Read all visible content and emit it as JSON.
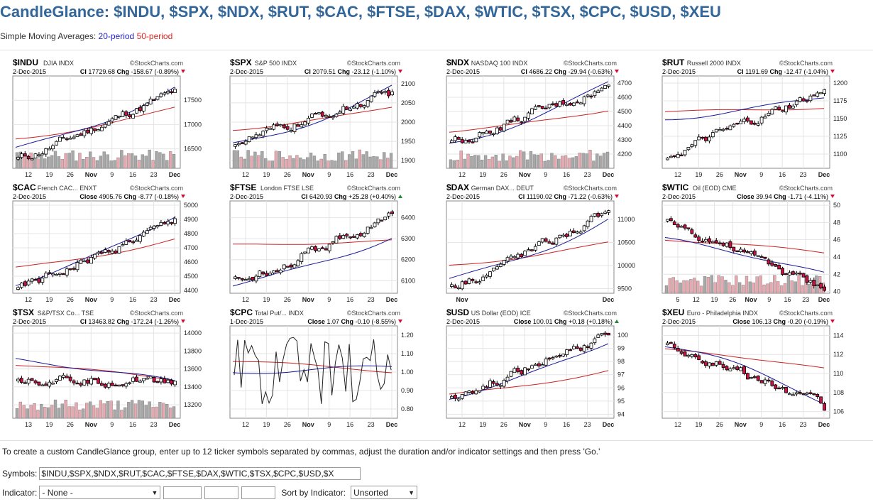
{
  "page": {
    "title": "CandleGlance: $INDU, $SPX, $NDX, $RUT, $CAC, $FTSE, $DAX, $WTIC, $TSX, $CPC, $USD, $XEU",
    "sma_label": "Simple Moving Averages:",
    "sma_20": "20-period",
    "sma_50": "50-period"
  },
  "colors": {
    "title": "#336699",
    "sma20": "#1a1a99",
    "sma50": "#cc2222",
    "up_candle": "#ffffff",
    "down_candle": "#cc1144",
    "vol_up": "#a8a8a8",
    "vol_down": "#e8a8b0"
  },
  "charts": [
    {
      "symbol": "$INDU",
      "name": "DJIA",
      "exchange": "INDX",
      "watermark": "©StockCharts.com",
      "date": "2-Dec-2015",
      "last_label": "Cl",
      "last": "17729.68",
      "chg_label": "Chg",
      "chg": "-158.67 (-0.89%)",
      "arrow": "down",
      "chart_data": {
        "type": "candlestick",
        "ylim": [
          16100,
          18000
        ],
        "y_ticks": [
          "17500",
          "17000",
          "16500"
        ],
        "x_ticks": [
          "12",
          "19",
          "26",
          "Nov",
          "9",
          "16",
          "23",
          "Dec"
        ],
        "volume": true,
        "start": 16300,
        "end": 17729,
        "ma20_start": 16500,
        "ma20_end": 17750,
        "ma50_start": 16700,
        "ma50_end": 17350
      }
    },
    {
      "symbol": "$SPX",
      "name": "S&P 500",
      "exchange": "INDX",
      "watermark": "©StockCharts.com",
      "date": "2-Dec-2015",
      "last_label": "Cl",
      "last": "2079.51",
      "chg_label": "Chg",
      "chg": "-23.12 (-1.10%)",
      "arrow": "down",
      "chart_data": {
        "type": "candlestick",
        "ylim": [
          1880,
          2120
        ],
        "y_ticks": [
          "2100",
          "2050",
          "2000",
          "1950",
          "1900"
        ],
        "x_ticks": [
          "12",
          "19",
          "26",
          "Nov",
          "9",
          "16",
          "23",
          "Dec"
        ],
        "volume": true,
        "start": 1950,
        "end": 2079,
        "ma20_start": 1940,
        "ma20_end": 2090,
        "ma50_start": 1980,
        "ma50_end": 2040
      }
    },
    {
      "symbol": "$NDX",
      "name": "NASDAQ 100",
      "exchange": "INDX",
      "watermark": "©StockCharts.com",
      "date": "2-Dec-2015",
      "last_label": "Cl",
      "last": "4686.22",
      "chg_label": "Chg",
      "chg": "-29.94 (-0.63%)",
      "arrow": "down",
      "chart_data": {
        "type": "candlestick",
        "ylim": [
          4100,
          4750
        ],
        "y_ticks": [
          "4700",
          "4600",
          "4500",
          "4400",
          "4300",
          "4200"
        ],
        "x_ticks": [
          "12",
          "19",
          "26",
          "Nov",
          "9",
          "16",
          "23",
          "Dec"
        ],
        "volume": true,
        "start": 4290,
        "end": 4686,
        "ma20_start": 4270,
        "ma20_end": 4700,
        "ma50_start": 4360,
        "ma50_end": 4510
      }
    },
    {
      "symbol": "$RUT",
      "name": "Russell 2000",
      "exchange": "INDX",
      "watermark": "©StockCharts.com",
      "date": "2-Dec-2015",
      "last_label": "Cl",
      "last": "1191.69",
      "chg_label": "Chg",
      "chg": "-12.47 (-1.04%)",
      "arrow": "down",
      "chart_data": {
        "type": "candlestick",
        "ylim": [
          1080,
          1210
        ],
        "y_ticks": [
          "1200",
          "1175",
          "1150",
          "1125",
          "1100"
        ],
        "x_ticks": [
          "12",
          "19",
          "26",
          "Nov",
          "9",
          "16",
          "23",
          "Dec"
        ],
        "volume": false,
        "start": 1100,
        "end": 1191,
        "ma20_start": 1150,
        "ma20_end": 1180,
        "ma50_start": 1160,
        "ma50_end": 1165
      }
    },
    {
      "symbol": "$CAC",
      "name": "French CAC...",
      "exchange": "ENXT",
      "watermark": "©StockCharts.com",
      "date": "2-Dec-2015",
      "last_label": "Close",
      "last": "4905.76",
      "chg_label": "Chg",
      "chg": "-8.77 (-0.18%)",
      "arrow": "down",
      "chart_data": {
        "type": "candlestick",
        "ylim": [
          4380,
          5030
        ],
        "y_ticks": [
          "5000",
          "4900",
          "4800",
          "4700",
          "4600",
          "4500",
          "4400"
        ],
        "x_ticks": [
          "12",
          "19",
          "26",
          "Nov",
          "9",
          "16",
          "23",
          "Dec"
        ],
        "volume": false,
        "start": 4420,
        "end": 4905,
        "ma20_start": 4450,
        "ma20_end": 4930,
        "ma50_start": 4560,
        "ma50_end": 4760
      }
    },
    {
      "symbol": "$FTSE",
      "name": "London FTSE",
      "exchange": "LSE",
      "watermark": "©StockCharts.com",
      "date": "2-Dec-2015",
      "last_label": "Cl",
      "last": "6420.93",
      "chg_label": "Chg",
      "chg": "+25.28 (+0.40%)",
      "arrow": "up",
      "chart_data": {
        "type": "candlestick",
        "ylim": [
          6040,
          6480
        ],
        "y_ticks": [
          "6400",
          "6300",
          "6200",
          "6100"
        ],
        "x_ticks": [
          "12",
          "19",
          "26",
          "Nov",
          "9",
          "16",
          "23",
          "Dec"
        ],
        "volume": false,
        "start": 6100,
        "end": 6420,
        "ma20_start": 6080,
        "ma20_end": 6310,
        "ma50_start": 6270,
        "ma50_end": 6290
      }
    },
    {
      "symbol": "$DAX",
      "name": "German DAX...",
      "exchange": "DEUT",
      "watermark": "©StockCharts.com",
      "date": "2-Dec-2015",
      "last_label": "Cl",
      "last": "11190.02",
      "chg_label": "Chg",
      "chg": "-71.22 (-0.63%)",
      "arrow": "down",
      "chart_data": {
        "type": "candlestick",
        "ylim": [
          9400,
          11400
        ],
        "y_ticks": [
          "11000",
          "10500",
          "10000",
          "9500"
        ],
        "x_ticks": [
          "Nov",
          "Dec"
        ],
        "volume": false,
        "start": 9600,
        "end": 11190,
        "ma20_start": 9700,
        "ma20_end": 11000,
        "ma50_start": 10000,
        "ma50_end": 10500
      }
    },
    {
      "symbol": "$WTIC",
      "name": "Oil (EOD)",
      "exchange": "CME",
      "watermark": "©StockCharts.com",
      "date": "2-Dec-2015",
      "last_label": "Close",
      "last": "39.94",
      "chg_label": "Chg",
      "chg": "-1.71 (-4.11%)",
      "arrow": "down",
      "chart_data": {
        "type": "candlestick",
        "ylim": [
          39.8,
          50.5
        ],
        "y_ticks": [
          "50",
          "48",
          "46",
          "44",
          "42",
          "40"
        ],
        "x_ticks": [
          "5",
          "12",
          "19",
          "26",
          "Nov",
          "9",
          "16",
          "23",
          "Dec"
        ],
        "volume": true,
        "start": 48,
        "end": 39.94,
        "ma20_start": 46,
        "ma20_end": 42,
        "ma50_start": 46,
        "ma50_end": 44.5
      }
    },
    {
      "symbol": "$TSX",
      "name": "S&P/TSX Co...",
      "exchange": "TSE",
      "watermark": "©StockCharts.com",
      "date": "2-Dec-2015",
      "last_label": "Cl",
      "last": "13463.82",
      "chg_label": "Chg",
      "chg": "-172.24 (-1.26%)",
      "arrow": "down",
      "chart_data": {
        "type": "candlestick",
        "ylim": [
          13050,
          14080
        ],
        "y_ticks": [
          "14000",
          "13800",
          "13600",
          "13400",
          "13200"
        ],
        "x_ticks": [
          "13",
          "19",
          "26",
          "Nov",
          "9",
          "16",
          "23",
          "Dec"
        ],
        "volume": true,
        "start": 13500,
        "end": 13463,
        "ma20_start": 13700,
        "ma20_end": 13450,
        "ma50_start": 13650,
        "ma50_end": 13480
      }
    },
    {
      "symbol": "$CPC",
      "name": "Total Put/...",
      "exchange": "INDX",
      "watermark": "©StockCharts.com",
      "date": "1-Dec-2015",
      "last_label": "Close",
      "last": "1.07",
      "chg_label": "Chg",
      "chg": "-0.10 (-8.55%)",
      "arrow": "down",
      "chart_data": {
        "type": "line",
        "ylim": [
          0.75,
          1.25
        ],
        "y_ticks": [
          "1.20",
          "1.10",
          "1.00",
          "0.90",
          "0.80"
        ],
        "x_ticks": [
          "12",
          "19",
          "26",
          "Nov",
          "9",
          "16",
          "23",
          "Dec"
        ],
        "volume": false,
        "start": 1.0,
        "end": 1.07,
        "ma20_start": 1.0,
        "ma20_end": 1.03,
        "ma50_start": 1.06,
        "ma50_end": 1.0
      }
    },
    {
      "symbol": "$USD",
      "name": "US Dollar (EOD)",
      "exchange": "ICE",
      "watermark": "©StockCharts.com",
      "date": "2-Dec-2015",
      "last_label": "Close",
      "last": "100.01",
      "chg_label": "Chg",
      "chg": "+0.18 (+0.18%)",
      "arrow": "up",
      "chart_data": {
        "type": "candlestick",
        "ylim": [
          93.7,
          100.7
        ],
        "y_ticks": [
          "100",
          "99",
          "98",
          "97",
          "96",
          "95",
          "94"
        ],
        "x_ticks": [
          "12",
          "19",
          "26",
          "Nov",
          "9",
          "16",
          "23",
          "Dec"
        ],
        "volume": false,
        "start": 95.5,
        "end": 100.01,
        "ma20_start": 95.3,
        "ma20_end": 99.5,
        "ma50_start": 95.5,
        "ma50_end": 97.3
      }
    },
    {
      "symbol": "$XEU",
      "name": "Euro - Philadelphia",
      "exchange": "INDX",
      "watermark": "©StockCharts.com",
      "date": "2-Dec-2015",
      "last_label": "Close",
      "last": "106.13",
      "chg_label": "Chg",
      "chg": "-0.20 (-0.19%)",
      "arrow": "down",
      "chart_data": {
        "type": "candlestick",
        "ylim": [
          105.3,
          115
        ],
        "y_ticks": [
          "114",
          "112",
          "110",
          "108",
          "106"
        ],
        "x_ticks": [
          "12",
          "19",
          "26",
          "Nov",
          "9",
          "16",
          "23",
          "Dec"
        ],
        "volume": false,
        "start": 113,
        "end": 106.13,
        "ma20_start": 113,
        "ma20_end": 107,
        "ma50_start": 112.5,
        "ma50_end": 110.5
      }
    }
  ],
  "footer": {
    "instructions": "To create a custom CandleGlance group, enter up to 12 ticker symbols separated by commas, adjust the duration and/or indicator settings and then press 'Go.'",
    "symbols_label": "Symbols:",
    "symbols_value": "$INDU,$SPX,$NDX,$RUT,$CAC,$FTSE,$DAX,$WTIC,$TSX,$CPC,$USD,$X",
    "indicator_label": "Indicator:",
    "indicator_value": "- None -",
    "sort_label": "Sort by Indicator:",
    "sort_value": "Unsorted"
  }
}
